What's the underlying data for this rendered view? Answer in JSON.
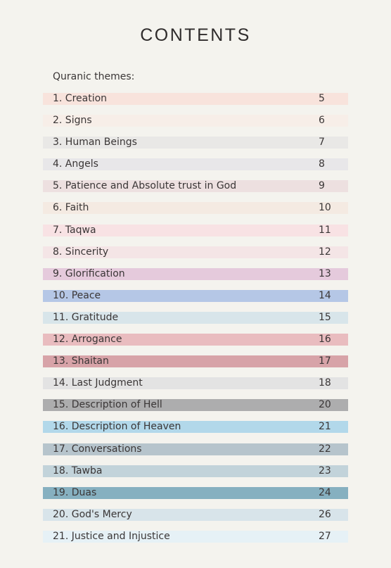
{
  "title": "CONTENTS",
  "section_label": "Quranic themes:",
  "entries": [
    {
      "label": "1. Creation",
      "page": "5",
      "color": "#f8e3dc"
    },
    {
      "label": "2. Signs",
      "page": "6",
      "color": "#f7eee8"
    },
    {
      "label": "3. Human Beings",
      "page": "7",
      "color": "#e9e8e6"
    },
    {
      "label": "4. Angels",
      "page": "8",
      "color": "#e8e7e9"
    },
    {
      "label": "5. Patience and Absolute trust in God",
      "page": "9",
      "color": "#ede0e0"
    },
    {
      "label": "6. Faith",
      "page": "10",
      "color": "#f4eae2"
    },
    {
      "label": "7. Taqwa",
      "page": "11",
      "color": "#f8e2e4"
    },
    {
      "label": "8. Sincerity",
      "page": "12",
      "color": "#f4e5e6"
    },
    {
      "label": "9. Glorification",
      "page": "13",
      "color": "#e5cadc"
    },
    {
      "label": "10. Peace",
      "page": "14",
      "color": "#b5c7e6"
    },
    {
      "label": "11. Gratitude",
      "page": "15",
      "color": "#d8e5ea"
    },
    {
      "label": "12. Arrogance",
      "page": "16",
      "color": "#e9bcbf"
    },
    {
      "label": "13. Shaitan",
      "page": "17",
      "color": "#d7a3a8"
    },
    {
      "label": "14. Last Judgment",
      "page": "18",
      "color": "#e3e3e3"
    },
    {
      "label": "15. Description of Hell",
      "page": "20",
      "color": "#adadae"
    },
    {
      "label": "16. Description of Heaven",
      "page": "21",
      "color": "#b2d8ea"
    },
    {
      "label": "17. Conversations",
      "page": "22",
      "color": "#b6c4cc"
    },
    {
      "label": "18. Tawba",
      "page": "23",
      "color": "#c2d3da"
    },
    {
      "label": "19. Duas",
      "page": "24",
      "color": "#86b0c0"
    },
    {
      "label": "20. God's Mercy",
      "page": "26",
      "color": "#d8e4ea"
    },
    {
      "label": "21. Justice and Injustice",
      "page": "27",
      "color": "#e6f1f6"
    }
  ]
}
